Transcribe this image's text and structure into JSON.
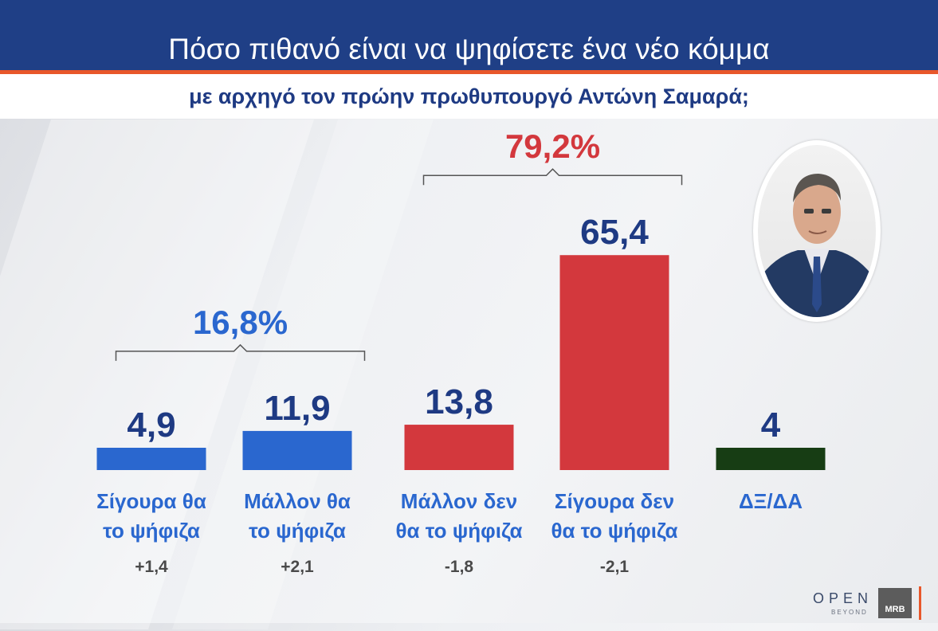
{
  "header": {
    "title": "Πόσο πιθανό είναι να ψηφίσετε ένα νέο κόμμα",
    "subtitle": "με αρχηγό τον πρώην πρωθυπουργό Αντώνη Σαμαρά;"
  },
  "colors": {
    "header_bg": "#1f3f86",
    "accent_line": "#e8572a",
    "blue": "#2a67cf",
    "red": "#d3383d",
    "green": "#173d14",
    "value_text": "#1e3a83",
    "red_text": "#d3383d"
  },
  "logos": {
    "open": "OPEN",
    "beyond": "BEYOND",
    "mrb": "MRB"
  },
  "chart_data": {
    "type": "bar",
    "categories": [
      [
        "Σίγουρα θα",
        "το ψήφιζα"
      ],
      [
        "Μάλλον θα",
        "το ψήφιζα"
      ],
      [
        "Μάλλον δεν",
        "θα το ψήφιζα"
      ],
      [
        "Σίγουρα δεν",
        "θα το ψήφιζα"
      ],
      [
        "ΔΞ/ΔΑ"
      ]
    ],
    "values": [
      4.9,
      11.9,
      13.8,
      65.4,
      4
    ],
    "value_labels": [
      "4,9",
      "11,9",
      "13,8",
      "65,4",
      "4"
    ],
    "changes": [
      "+1,4",
      "+2,1",
      "-1,8",
      "-2,1",
      ""
    ],
    "bar_colors": [
      "blue",
      "blue",
      "red",
      "red",
      "green"
    ],
    "groups": [
      {
        "label": "16,8%",
        "from": 0,
        "to": 1,
        "color": "blue"
      },
      {
        "label": "79,2%",
        "from": 2,
        "to": 3,
        "color": "red"
      }
    ],
    "grid": false
  }
}
